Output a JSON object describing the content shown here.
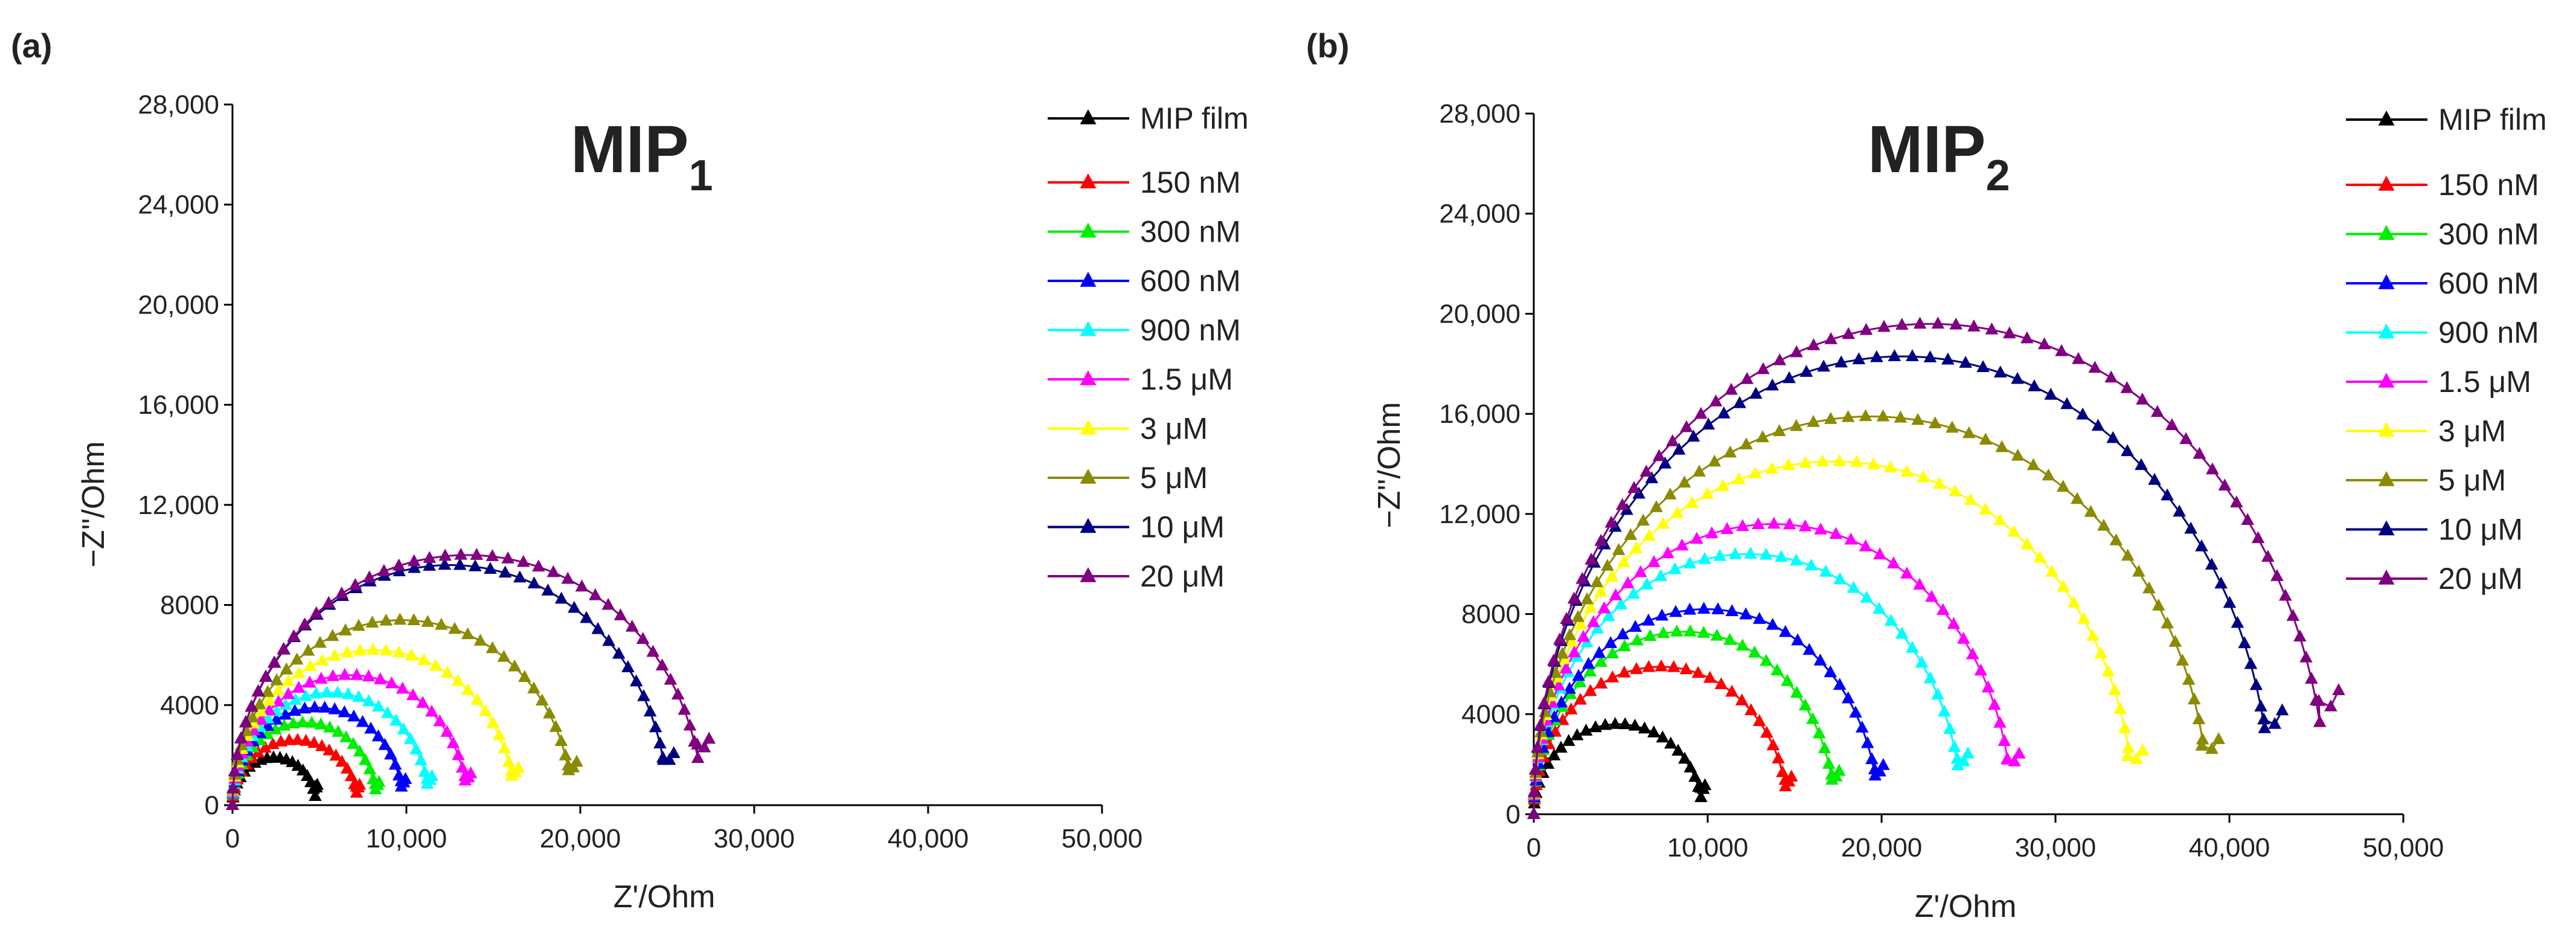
{
  "panels": [
    {
      "label": "(a)",
      "title": "MIP",
      "title_sub": "1",
      "xlabel": "Z'/Ohm",
      "ylabel": "−Z''/Ohm",
      "xlim": [
        0,
        50000
      ],
      "ylim": [
        0,
        28000
      ],
      "xticks": [
        "0",
        "10,000",
        "20,000",
        "30,000",
        "40,000",
        "50,000"
      ],
      "yticks": [
        "0",
        "4000",
        "8000",
        "12,000",
        "16,000",
        "20,000",
        "24,000",
        "28,000"
      ]
    },
    {
      "label": "(b)",
      "title": "MIP",
      "title_sub": "2",
      "xlabel": "Z'/Ohm",
      "ylabel": "−Z''/Ohm",
      "xlim": [
        0,
        50000
      ],
      "ylim": [
        0,
        28000
      ],
      "xticks": [
        "0",
        "10,000",
        "20,000",
        "30,000",
        "40,000",
        "50,000"
      ],
      "yticks": [
        "0",
        "4000",
        "8000",
        "12,000",
        "16,000",
        "20,000",
        "24,000",
        "28,000"
      ]
    }
  ],
  "chart_data": [
    {
      "type": "scatter",
      "title": "MIP1",
      "xlabel": "Z'/Ohm",
      "ylabel": "−Z''/Ohm",
      "xlim": [
        0,
        50000
      ],
      "ylim": [
        0,
        28000
      ],
      "series": [
        {
          "name": "MIP film",
          "color": "#000000",
          "x_start": 0,
          "x_end": 4800,
          "peak": 1900,
          "tail": 700
        },
        {
          "name": "150 nM",
          "color": "#ff0000",
          "x_start": 0,
          "x_end": 7200,
          "peak": 2600,
          "tail": 700
        },
        {
          "name": "300 nM",
          "color": "#00ee00",
          "x_start": 0,
          "x_end": 8300,
          "peak": 3300,
          "tail": 800
        },
        {
          "name": "600 nM",
          "color": "#0000ff",
          "x_start": 0,
          "x_end": 9800,
          "peak": 3900,
          "tail": 900
        },
        {
          "name": "900 nM",
          "color": "#00ffff",
          "x_start": 0,
          "x_end": 11300,
          "peak": 4500,
          "tail": 1000
        },
        {
          "name": "1.5 μM",
          "color": "#ff00ff",
          "x_start": 0,
          "x_end": 13500,
          "peak": 5200,
          "tail": 1100
        },
        {
          "name": "3 μM",
          "color": "#ffff00",
          "x_start": 0,
          "x_end": 16200,
          "peak": 6200,
          "tail": 1300
        },
        {
          "name": "5 μM",
          "color": "#8b8b00",
          "x_start": 0,
          "x_end": 19500,
          "peak": 7400,
          "tail": 1500
        },
        {
          "name": "10 μM",
          "color": "#000080",
          "x_start": 0,
          "x_end": 25000,
          "peak": 9600,
          "tail": 1800
        },
        {
          "name": "20 μM",
          "color": "#800080",
          "x_start": 0,
          "x_end": 27000,
          "peak": 10000,
          "tail": 2300
        }
      ]
    },
    {
      "type": "scatter",
      "title": "MIP2",
      "xlabel": "Z'/Ohm",
      "ylabel": "−Z''/Ohm",
      "xlim": [
        0,
        50000
      ],
      "ylim": [
        0,
        28000
      ],
      "series": [
        {
          "name": "MIP film",
          "color": "#000000",
          "x_start": 0,
          "x_end": 9700,
          "peak": 3600,
          "tail": 1000
        },
        {
          "name": "150 nM",
          "color": "#ff0000",
          "x_start": 0,
          "x_end": 14600,
          "peak": 5900,
          "tail": 1300
        },
        {
          "name": "300 nM",
          "color": "#00ee00",
          "x_start": 0,
          "x_end": 17300,
          "peak": 7300,
          "tail": 1500
        },
        {
          "name": "600 nM",
          "color": "#0000ff",
          "x_start": 0,
          "x_end": 19800,
          "peak": 8200,
          "tail": 1700
        },
        {
          "name": "900 nM",
          "color": "#00ffff",
          "x_start": 0,
          "x_end": 24600,
          "peak": 10400,
          "tail": 2100
        },
        {
          "name": "1.5 μM",
          "color": "#ff00ff",
          "x_start": 0,
          "x_end": 27500,
          "peak": 11600,
          "tail": 2100
        },
        {
          "name": "3 μM",
          "color": "#ffff00",
          "x_start": 0,
          "x_end": 34500,
          "peak": 14100,
          "tail": 2200
        },
        {
          "name": "5 μM",
          "color": "#8b8b00",
          "x_start": 0,
          "x_end": 38800,
          "peak": 15900,
          "tail": 2600
        },
        {
          "name": "10 μM",
          "color": "#000080",
          "x_start": 0,
          "x_end": 42400,
          "peak": 18300,
          "tail": 3600
        },
        {
          "name": "20 μM",
          "color": "#800080",
          "x_start": 0,
          "x_end": 45600,
          "peak": 19600,
          "tail": 4300
        }
      ]
    }
  ]
}
